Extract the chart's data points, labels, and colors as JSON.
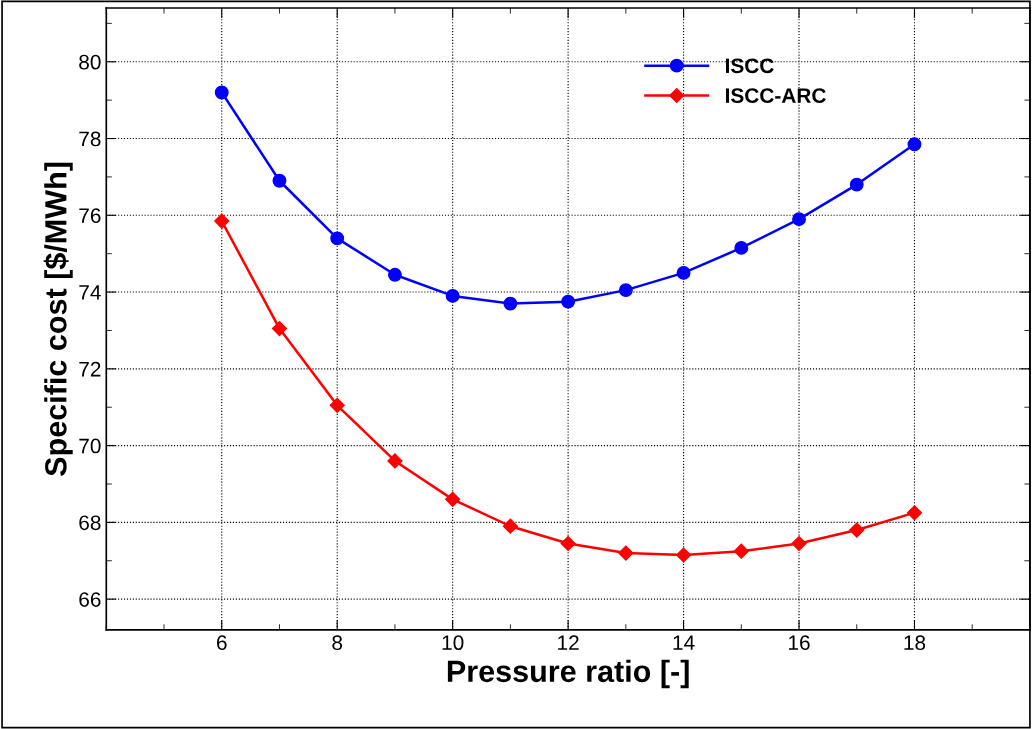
{
  "chart_data": {
    "type": "line",
    "xlabel": "Pressure ratio [-]",
    "ylabel": "Specific cost [$/MWh]",
    "x": [
      6,
      7,
      8,
      9,
      10,
      11,
      12,
      13,
      14,
      15,
      16,
      17,
      18
    ],
    "series": [
      {
        "name": "ISCC",
        "color": "#0000ff",
        "marker": "circle",
        "values": [
          79.2,
          76.9,
          75.4,
          74.45,
          73.9,
          73.7,
          73.75,
          74.05,
          74.5,
          75.15,
          75.9,
          76.8,
          77.85
        ]
      },
      {
        "name": "ISCC-ARC",
        "color": "#ff0000",
        "marker": "diamond",
        "values": [
          75.85,
          73.05,
          71.05,
          69.6,
          68.6,
          67.9,
          67.45,
          67.2,
          67.15,
          67.25,
          67.45,
          67.8,
          68.25
        ]
      }
    ],
    "xlim": [
      4,
      20
    ],
    "xticks": [
      6,
      8,
      10,
      12,
      14,
      16,
      18
    ],
    "ylim": [
      65.2,
      81.4
    ],
    "yticks": [
      66,
      68,
      70,
      72,
      74,
      76,
      78,
      80
    ],
    "grid": true,
    "legend": "top right",
    "line_style": "solid"
  }
}
